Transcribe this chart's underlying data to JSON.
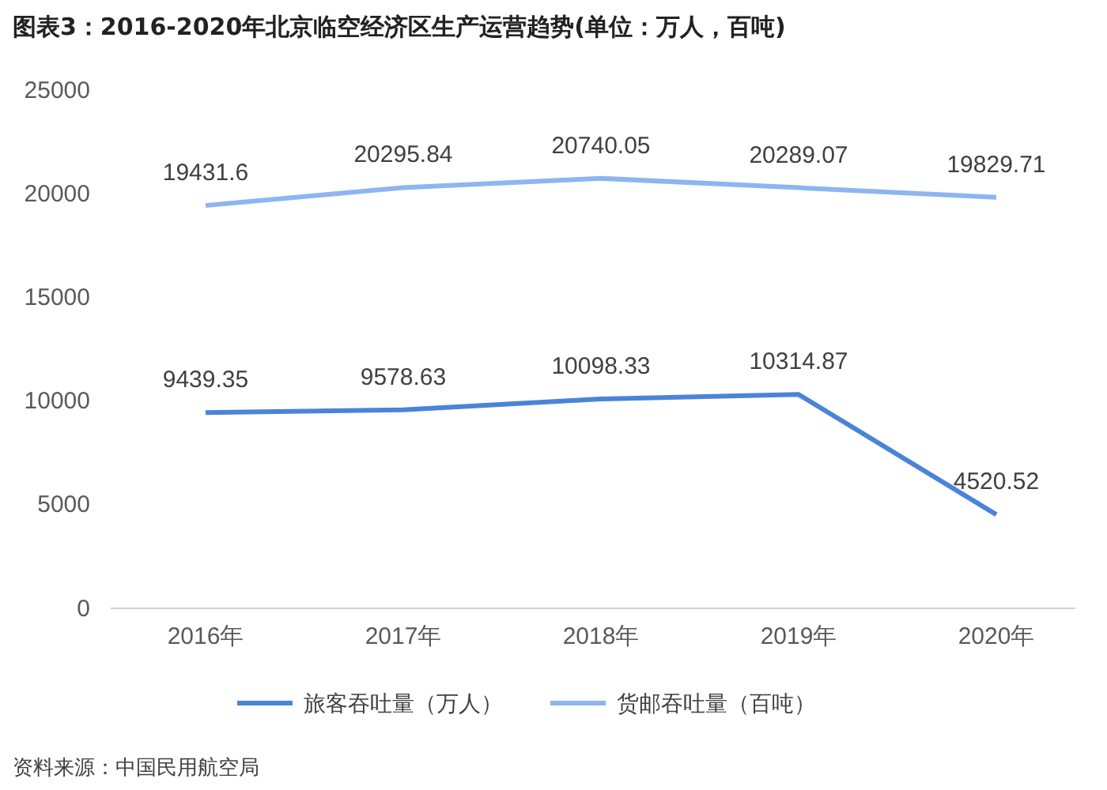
{
  "chart_data": {
    "type": "line",
    "title": "图表3：2016-2020年北京临空经济区生产运营趋势(单位：万人，百吨)",
    "categories": [
      "2016年",
      "2017年",
      "2018年",
      "2019年",
      "2020年"
    ],
    "series": [
      {
        "name": "旅客吞吐量（万人）",
        "color": "#4a84d9",
        "values": [
          9439.35,
          9578.63,
          10098.33,
          10314.87,
          4520.52
        ]
      },
      {
        "name": "货邮吞吐量（百吨）",
        "color": "#8eb5ef",
        "values": [
          19431.6,
          20295.84,
          20740.05,
          20289.07,
          19829.71
        ]
      }
    ],
    "ylim": [
      0,
      25000
    ],
    "yticks": [
      0,
      5000,
      10000,
      15000,
      20000,
      25000
    ],
    "data_labels": true,
    "legend": "bottom",
    "marker": "none",
    "line_style": "solid",
    "annotations": [
      "资料来源：中国民用航空局"
    ]
  }
}
